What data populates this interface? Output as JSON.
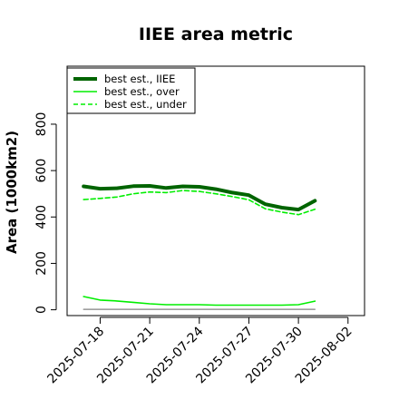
{
  "chart_data": {
    "type": "line",
    "title": "IIEE area metric",
    "ylabel": "Area (1000km2)",
    "xlabel": "",
    "x": [
      "2025-07-17",
      "2025-07-18",
      "2025-07-19",
      "2025-07-20",
      "2025-07-21",
      "2025-07-22",
      "2025-07-23",
      "2025-07-24",
      "2025-07-25",
      "2025-07-26",
      "2025-07-27",
      "2025-07-28",
      "2025-07-29",
      "2025-07-30",
      "2025-07-31"
    ],
    "xlim": [
      "2025-07-16",
      "2025-08-03"
    ],
    "xticks": [
      "2025-07-18",
      "2025-07-21",
      "2025-07-24",
      "2025-07-27",
      "2025-07-30",
      "2025-08-02"
    ],
    "ylim": [
      -25,
      1050
    ],
    "yticks": [
      0,
      200,
      400,
      600,
      800
    ],
    "series": [
      {
        "name": "best est., IIEE",
        "color": "#006400",
        "width": 4,
        "dash": "",
        "values": [
          532,
          522,
          524,
          533,
          534,
          525,
          532,
          530,
          520,
          505,
          494,
          455,
          440,
          432,
          470
        ]
      },
      {
        "name": "best est., over",
        "color": "#00ee00",
        "width": 1.6,
        "dash": "",
        "values": [
          57,
          42,
          38,
          32,
          26,
          22,
          22,
          22,
          20,
          20,
          20,
          20,
          20,
          22,
          37
        ]
      },
      {
        "name": "best est., under",
        "color": "#00ee00",
        "width": 1.6,
        "dash": "5,3",
        "values": [
          475,
          480,
          486,
          500,
          508,
          505,
          514,
          510,
          500,
          488,
          474,
          435,
          421,
          410,
          433
        ]
      },
      {
        "name": "",
        "color": "#808080",
        "width": 1.2,
        "dash": "",
        "values": [
          2,
          2,
          2,
          2,
          2,
          2,
          2,
          2,
          2,
          2,
          2,
          2,
          2,
          2,
          2
        ]
      }
    ],
    "legend_position": "top-left",
    "grid": false
  }
}
